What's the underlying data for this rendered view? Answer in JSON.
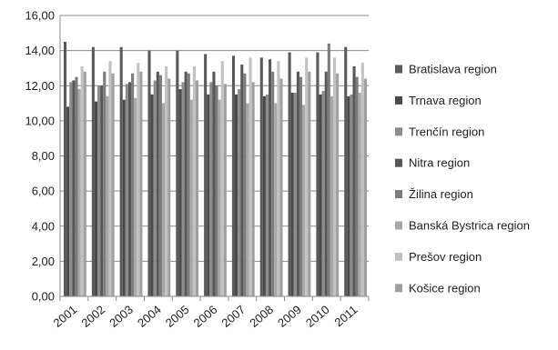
{
  "chart_data": {
    "type": "bar",
    "title": "",
    "xlabel": "",
    "ylabel": "",
    "ylim": [
      0,
      16
    ],
    "y_ticks": [
      "0,00",
      "2,00",
      "4,00",
      "6,00",
      "8,00",
      "10,00",
      "12,00",
      "14,00",
      "16,00"
    ],
    "grid": true,
    "legend_position": "right",
    "categories": [
      "2001",
      "2002",
      "2003",
      "2004",
      "2005",
      "2006",
      "2007",
      "2008",
      "2009",
      "2010",
      "2011"
    ],
    "series": [
      {
        "name": "Bratislava region",
        "color": "#5a5a5a",
        "values": [
          14.5,
          14.2,
          14.2,
          14.0,
          14.0,
          13.8,
          13.7,
          13.6,
          13.9,
          13.9,
          14.2
        ]
      },
      {
        "name": "Trnava region",
        "color": "#4a4a4a",
        "values": [
          10.8,
          11.1,
          11.2,
          11.5,
          11.8,
          11.5,
          11.5,
          11.4,
          11.6,
          11.5,
          11.4
        ]
      },
      {
        "name": "Trenčín region",
        "color": "#8c8c8c",
        "values": [
          12.2,
          12.0,
          12.1,
          12.3,
          12.2,
          12.2,
          11.8,
          11.5,
          11.6,
          11.7,
          11.5
        ]
      },
      {
        "name": "Nitra region",
        "color": "#585858",
        "values": [
          12.3,
          12.0,
          12.2,
          12.8,
          12.8,
          12.8,
          13.2,
          13.5,
          12.8,
          12.8,
          13.1
        ]
      },
      {
        "name": "Žilina region",
        "color": "#7c7c7c",
        "values": [
          12.5,
          12.8,
          12.7,
          12.6,
          12.7,
          12.0,
          12.7,
          12.8,
          12.5,
          14.4,
          12.5
        ]
      },
      {
        "name": "Banská Bystrica region",
        "color": "#a8a8a8",
        "values": [
          11.8,
          11.4,
          11.3,
          11.0,
          11.2,
          11.2,
          11.0,
          11.0,
          10.9,
          11.4,
          11.6
        ]
      },
      {
        "name": "Prešov region",
        "color": "#c2c2c2",
        "values": [
          13.1,
          13.4,
          13.3,
          13.1,
          13.1,
          13.4,
          13.6,
          13.4,
          13.6,
          13.6,
          13.3
        ]
      },
      {
        "name": "Košice region",
        "color": "#a0a0a0",
        "values": [
          12.8,
          12.7,
          12.8,
          12.4,
          12.3,
          12.1,
          12.2,
          12.4,
          12.8,
          12.7,
          12.4
        ]
      }
    ]
  }
}
